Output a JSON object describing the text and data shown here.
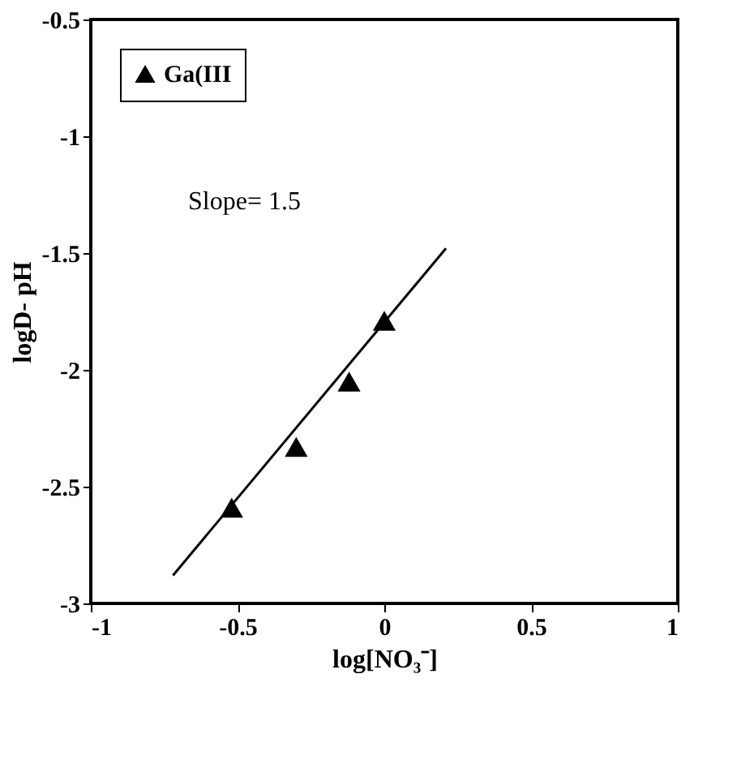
{
  "chart_data": {
    "type": "scatter",
    "xlabel": "log[NO₃⁻]",
    "ylabel": "logD- pH",
    "annotations": [
      "Slope= 1.5"
    ],
    "xlim": [
      -1,
      1
    ],
    "xticks": [
      -1,
      -0.5,
      0,
      0.5,
      1
    ],
    "ylim": [
      -3,
      -0.5
    ],
    "yticks": [
      -3,
      -2.5,
      -2,
      -1.5,
      -1,
      -0.5
    ],
    "grid": false,
    "legend": "top left",
    "marker": "triangle",
    "series": [
      {
        "name": "Ga(III",
        "color": "#000000",
        "x": [
          -0.52,
          -0.3,
          -0.12,
          0.0
        ],
        "values": [
          -2.59,
          -2.33,
          -2.05,
          -1.79
        ]
      },
      {
        "type": "line",
        "color": "#000000",
        "x": [
          -0.72,
          0.21
        ],
        "values": [
          -2.88,
          -1.48
        ],
        "marker": "none",
        "line_style": "solid"
      }
    ]
  }
}
